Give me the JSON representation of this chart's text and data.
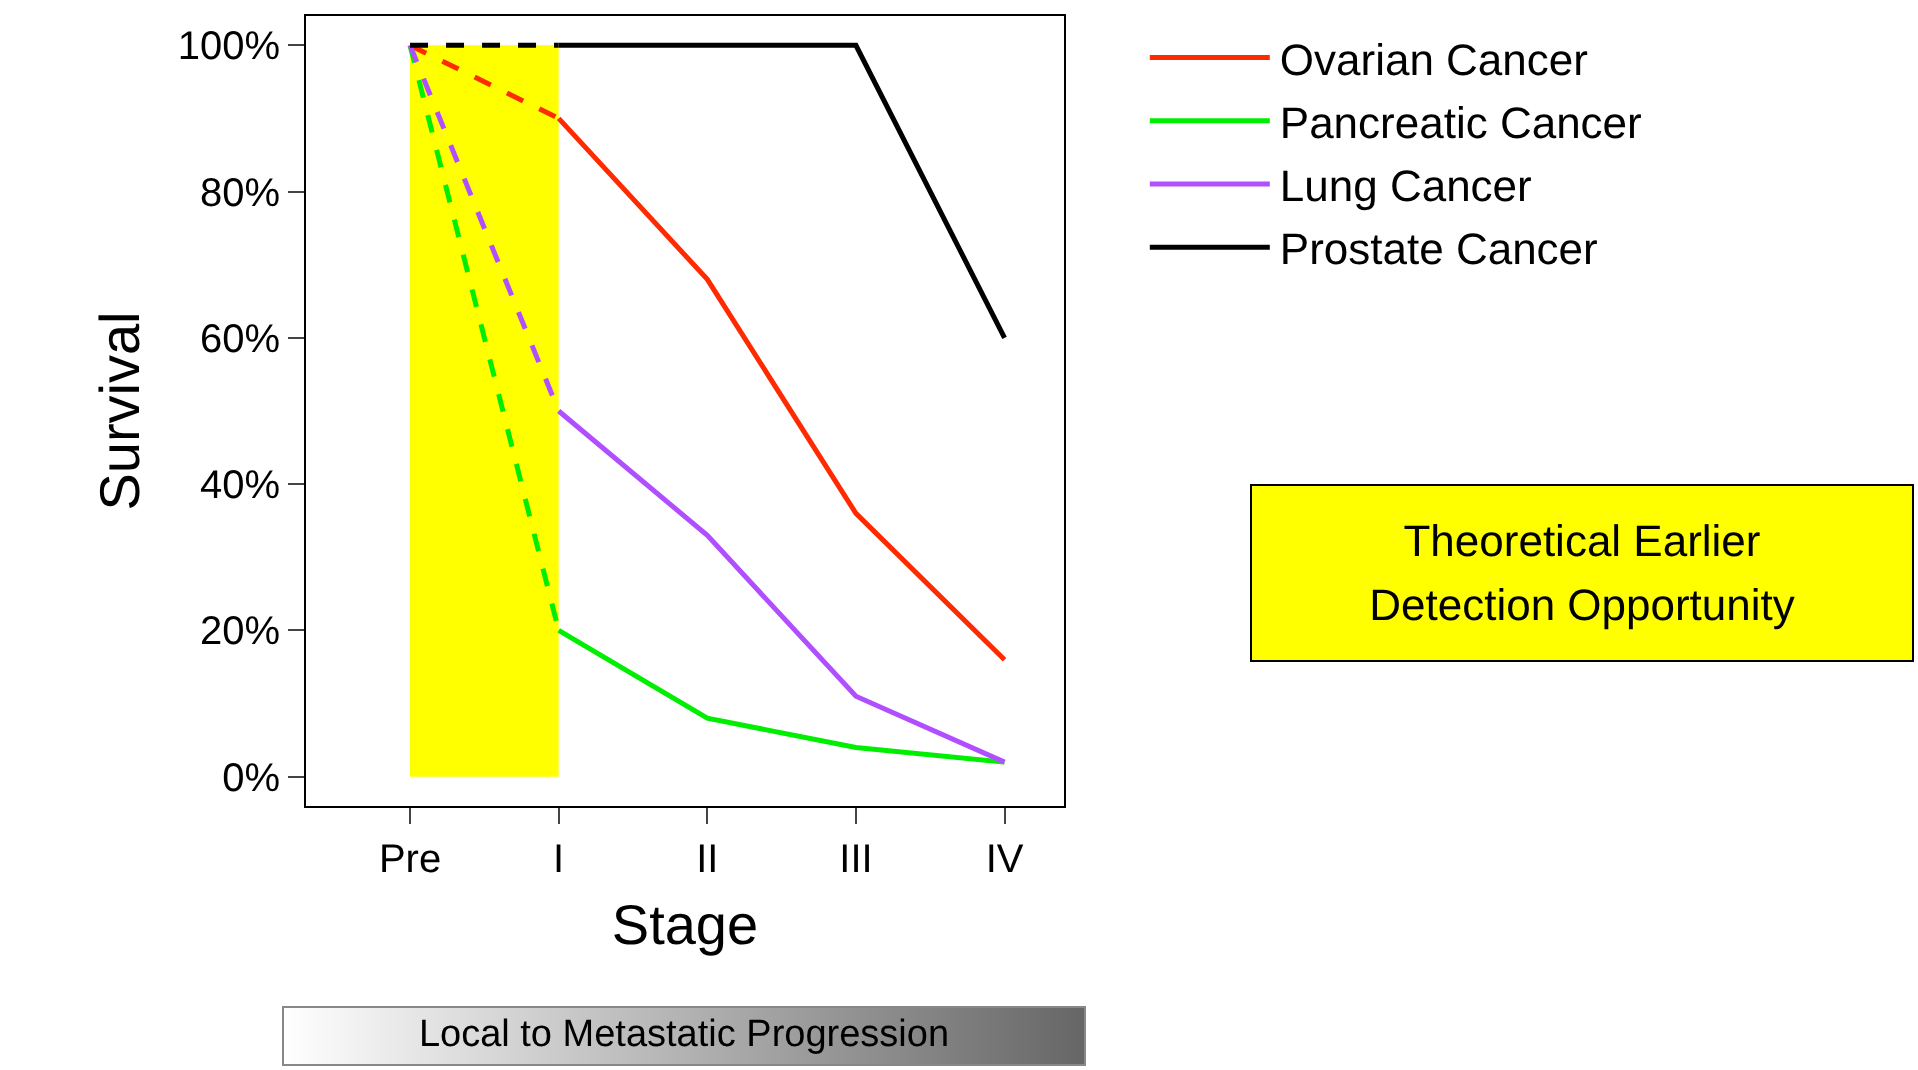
{
  "chart_data": {
    "type": "line",
    "xlabel": "Stage",
    "ylabel": "Survival",
    "categories": [
      "Pre",
      "I",
      "II",
      "III",
      "IV"
    ],
    "series": [
      {
        "name": "Ovarian Cancer",
        "color": "#ff2a00",
        "values": [
          null,
          90,
          68,
          36,
          16
        ]
      },
      {
        "name": "Pancreatic Cancer",
        "color": "#00ee00",
        "values": [
          null,
          20,
          8,
          4,
          2
        ]
      },
      {
        "name": "Lung Cancer",
        "color": "#b04fff",
        "values": [
          null,
          50,
          33,
          11,
          2
        ]
      },
      {
        "name": "Prostate Cancer",
        "color": "#000000",
        "values": [
          null,
          100,
          100,
          100,
          60
        ]
      },
      {
        "color": "#ff2a00",
        "line_style": "dashed",
        "values": [
          100,
          90,
          null,
          null,
          null
        ]
      },
      {
        "color": "#00ee00",
        "line_style": "dashed",
        "values": [
          100,
          20,
          null,
          null,
          null
        ]
      },
      {
        "color": "#b04fff",
        "line_style": "dashed",
        "values": [
          100,
          50,
          null,
          null,
          null
        ]
      },
      {
        "color": "#000000",
        "line_style": "dashed",
        "values": [
          100,
          100,
          null,
          null,
          null
        ]
      }
    ],
    "ylim": [
      -4,
      104
    ],
    "yticks": [
      {
        "value": 0,
        "label": "0%"
      },
      {
        "value": 20,
        "label": "20%"
      },
      {
        "value": 40,
        "label": "40%"
      },
      {
        "value": 60,
        "label": "60%"
      },
      {
        "value": 80,
        "label": "80%"
      },
      {
        "value": 100,
        "label": "100%"
      }
    ],
    "bands": [
      {
        "axis": "x",
        "from": "Pre",
        "to": "I",
        "color": "#ffff00"
      }
    ],
    "annotations": [
      "Local to Metastatic Progression",
      "Theoretical Earlier\nDetection Opportunity"
    ],
    "grid": false,
    "legend": "right",
    "marker": "none",
    "line_style": "solid"
  }
}
